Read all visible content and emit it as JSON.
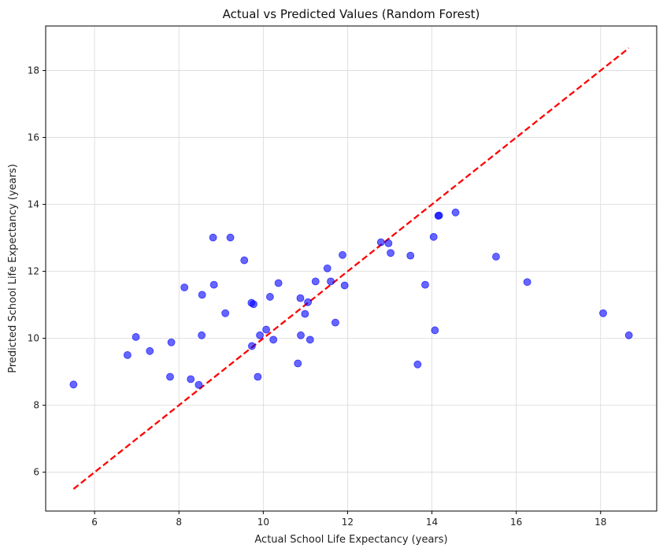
{
  "chart_data": {
    "type": "scatter",
    "title": "Actual vs Predicted Values (Random Forest)",
    "xlabel": "Actual School Life Expectancy (years)",
    "ylabel": "Predicted School Life Expectancy (years)",
    "xlim": [
      4.84,
      19.33
    ],
    "ylim": [
      4.84,
      19.33
    ],
    "xticks": [
      6,
      8,
      10,
      12,
      14,
      16,
      18
    ],
    "yticks": [
      6,
      8,
      10,
      12,
      14,
      16,
      18
    ],
    "grid": true,
    "point_color": "#0000ff",
    "line_color": "#ff0000",
    "reference_line": {
      "style": "dashed",
      "x": [
        5.5,
        18.67
      ],
      "y": [
        5.5,
        18.67
      ]
    },
    "points": [
      [
        5.5,
        8.62
      ],
      [
        6.78,
        9.5
      ],
      [
        6.98,
        10.04
      ],
      [
        7.31,
        9.62
      ],
      [
        7.79,
        8.85
      ],
      [
        7.82,
        9.88
      ],
      [
        8.13,
        11.52
      ],
      [
        8.28,
        8.78
      ],
      [
        8.47,
        8.61
      ],
      [
        8.54,
        10.09
      ],
      [
        8.55,
        11.3
      ],
      [
        8.81,
        13.01
      ],
      [
        8.83,
        11.6
      ],
      [
        9.1,
        10.75
      ],
      [
        9.22,
        13.01
      ],
      [
        9.55,
        12.33
      ],
      [
        9.72,
        11.06
      ],
      [
        9.73,
        9.77
      ],
      [
        9.77,
        11.02
      ],
      [
        9.87,
        8.85
      ],
      [
        9.92,
        10.09
      ],
      [
        10.07,
        10.26
      ],
      [
        10.16,
        11.24
      ],
      [
        10.24,
        9.96
      ],
      [
        10.36,
        11.65
      ],
      [
        10.82,
        9.25
      ],
      [
        10.88,
        11.2
      ],
      [
        10.89,
        10.09
      ],
      [
        10.99,
        10.73
      ],
      [
        11.06,
        11.08
      ],
      [
        11.11,
        9.96
      ],
      [
        11.24,
        11.7
      ],
      [
        11.52,
        12.09
      ],
      [
        11.6,
        11.7
      ],
      [
        11.71,
        10.47
      ],
      [
        11.88,
        12.49
      ],
      [
        11.93,
        11.58
      ],
      [
        12.79,
        12.87
      ],
      [
        12.97,
        12.84
      ],
      [
        13.02,
        12.55
      ],
      [
        13.49,
        12.47
      ],
      [
        13.66,
        9.22
      ],
      [
        13.84,
        11.6
      ],
      [
        14.04,
        13.03
      ],
      [
        14.07,
        10.24
      ],
      [
        14.15,
        13.66
      ],
      [
        14.17,
        13.67
      ],
      [
        14.56,
        13.76
      ],
      [
        15.52,
        12.44
      ],
      [
        16.26,
        11.68
      ],
      [
        18.06,
        10.75
      ],
      [
        18.67,
        10.09
      ]
    ]
  }
}
